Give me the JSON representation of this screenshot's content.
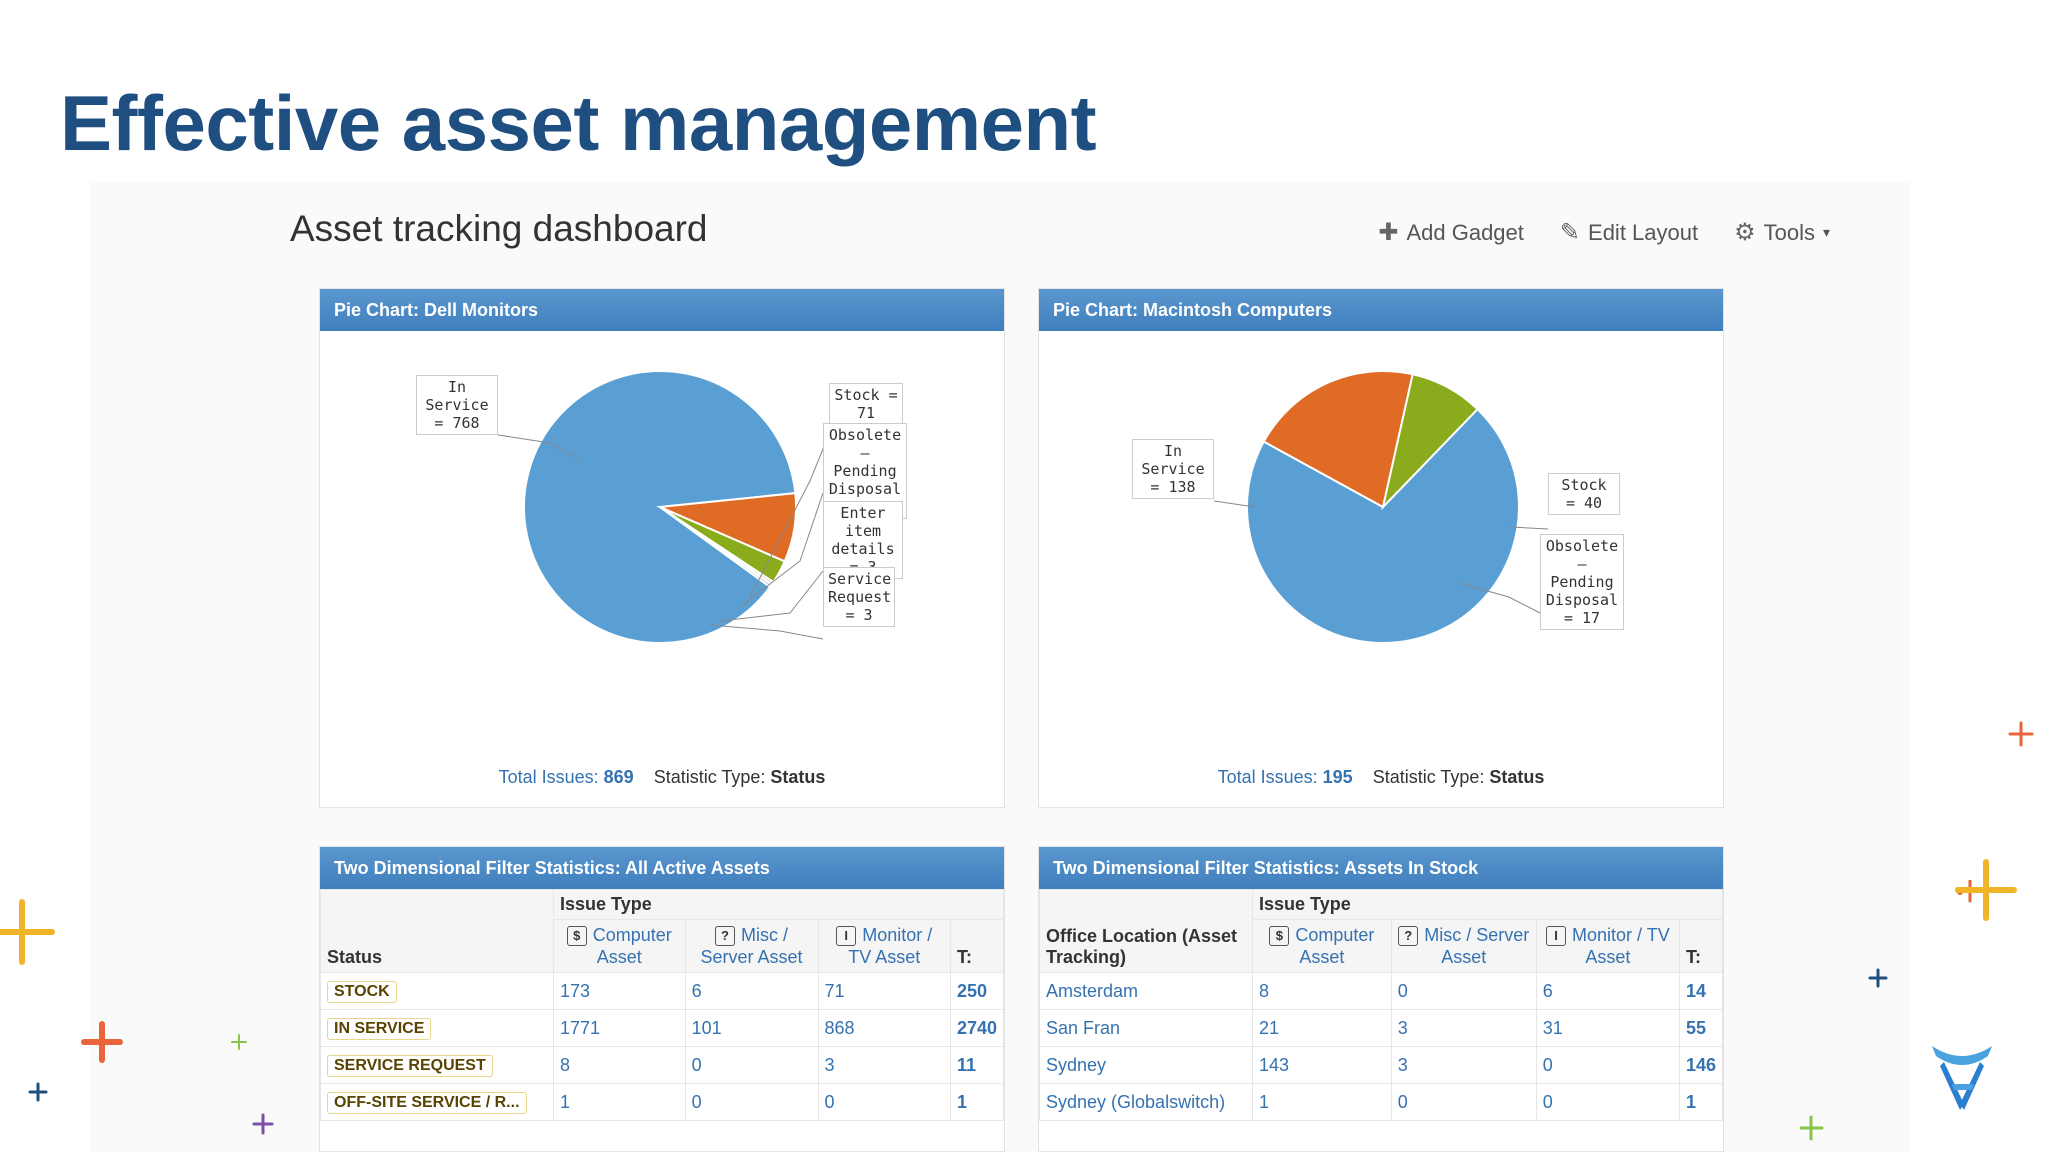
{
  "slide": {
    "title": "Effective asset management"
  },
  "dashboard": {
    "title": "Asset tracking dashboard",
    "toolbar": {
      "add_gadget": "Add Gadget",
      "edit_layout": "Edit Layout",
      "tools": "Tools"
    }
  },
  "pie1": {
    "header": "Pie Chart: Dell Monitors",
    "labels": {
      "in_service": "In Service = 768",
      "stock": "Stock = 71",
      "obsolete": "Obsolete – Pending Disposal = 24",
      "enter_item": "Enter item details = 3",
      "service_request": "Service Request = 3"
    },
    "footer_total_label": "Total Issues:",
    "footer_total_value": "869",
    "footer_stat_label": "Statistic Type:",
    "footer_stat_value": "Status"
  },
  "pie2": {
    "header": "Pie Chart: Macintosh Computers",
    "labels": {
      "in_service": "In Service = 138",
      "stock": "Stock = 40",
      "obsolete": "Obsolete – Pending Disposal = 17"
    },
    "footer_total_label": "Total Issues:",
    "footer_total_value": "195",
    "footer_stat_label": "Statistic Type:",
    "footer_stat_value": "Status"
  },
  "table1": {
    "header": "Two Dimensional Filter Statistics: All Active Assets",
    "group_label": "Issue Type",
    "row_header": "Status",
    "cols": [
      "Computer Asset",
      "Misc / Server Asset",
      "Monitor / TV Asset",
      "T:"
    ],
    "col_icons": [
      "$",
      "?",
      "I"
    ],
    "rows": [
      {
        "label": "STOCK",
        "c1": "173",
        "c2": "6",
        "c3": "71",
        "t": "250"
      },
      {
        "label": "IN SERVICE",
        "c1": "1771",
        "c2": "101",
        "c3": "868",
        "t": "2740"
      },
      {
        "label": "SERVICE REQUEST",
        "c1": "8",
        "c2": "0",
        "c3": "3",
        "t": "11"
      },
      {
        "label": "OFF-SITE SERVICE / R...",
        "c1": "1",
        "c2": "0",
        "c3": "0",
        "t": "1"
      }
    ]
  },
  "table2": {
    "header": "Two Dimensional Filter Statistics: Assets In Stock",
    "group_label": "Issue Type",
    "row_header": "Office Location (Asset Tracking)",
    "cols": [
      "Computer Asset",
      "Misc / Server Asset",
      "Monitor / TV Asset",
      "T:"
    ],
    "col_icons": [
      "$",
      "?",
      "I"
    ],
    "rows": [
      {
        "label": "Amsterdam",
        "c1": "8",
        "c2": "0",
        "c3": "6",
        "t": "14"
      },
      {
        "label": "San Fran",
        "c1": "21",
        "c2": "3",
        "c3": "31",
        "t": "55"
      },
      {
        "label": "Sydney",
        "c1": "143",
        "c2": "3",
        "c3": "0",
        "t": "146"
      },
      {
        "label": "Sydney (Globalswitch)",
        "c1": "1",
        "c2": "0",
        "c3": "0",
        "t": "1"
      }
    ]
  },
  "chart_data": [
    {
      "type": "pie",
      "title": "Pie Chart: Dell Monitors",
      "categories": [
        "In Service",
        "Stock",
        "Obsolete - Pending Disposal",
        "Enter item details",
        "Service Request"
      ],
      "values": [
        768,
        71,
        24,
        3,
        3
      ],
      "colors": [
        "#5a9fd4",
        "#e06b25",
        "#8aab1b",
        "#d9d9d9",
        "#cfcfcf"
      ]
    },
    {
      "type": "pie",
      "title": "Pie Chart: Macintosh Computers",
      "categories": [
        "In Service",
        "Stock",
        "Obsolete - Pending Disposal"
      ],
      "values": [
        138,
        40,
        17
      ],
      "colors": [
        "#5a9fd4",
        "#e06b25",
        "#8aab1b"
      ]
    }
  ],
  "colors": {
    "title": "#1f4e80",
    "header_blue": "#4a8ac6",
    "link_blue": "#3572b0",
    "deco_orange": "#e8643a",
    "deco_yellow": "#f0b429",
    "deco_green": "#8bc34a",
    "deco_purple": "#7b4fa8",
    "deco_navy": "#1f4e80"
  },
  "icons": {
    "add": "plus-icon",
    "edit": "pencil-icon",
    "tools": "gear-icon",
    "logo": "atlassian-logo"
  }
}
